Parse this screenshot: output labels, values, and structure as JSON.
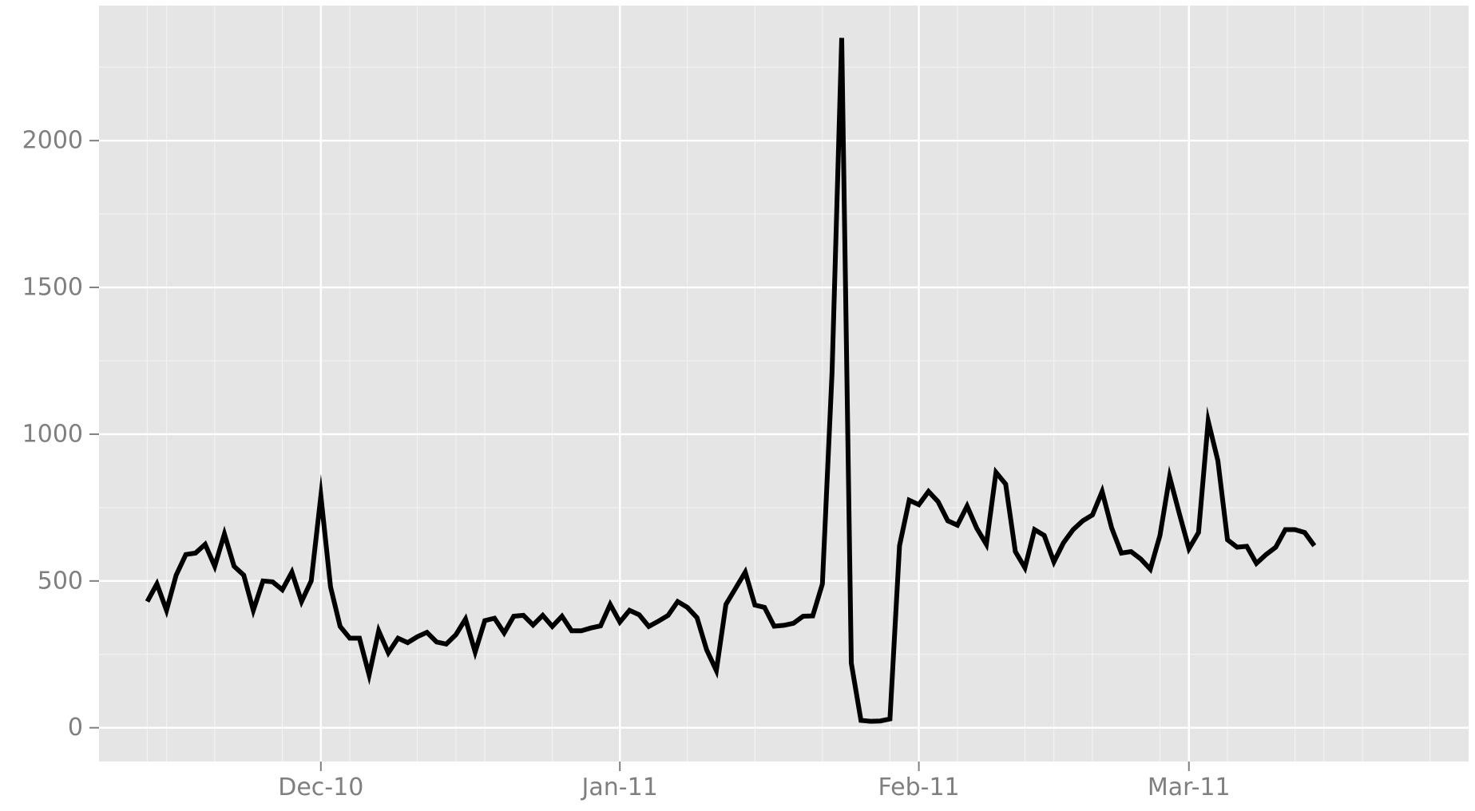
{
  "chart_data": {
    "type": "line",
    "title": "",
    "xlabel": "",
    "ylabel": "",
    "x_start": "2010-11-13",
    "x_end": "2011-03-18",
    "xlim": [
      "2010-11-08",
      "2011-03-30"
    ],
    "ylim": [
      -115,
      2460
    ],
    "grid": true,
    "legend": "none",
    "colors": {
      "panel": "#e5e5e5",
      "grid_major": "#ffffff",
      "grid_minor": "#f2f2f2",
      "line": "#000000",
      "tick_text": "#7f7f7f",
      "tick_mark": "#7f7f7f"
    },
    "x_ticks": [
      {
        "date": "2010-12-01",
        "label": "Dec-10"
      },
      {
        "date": "2011-01-01",
        "label": "Jan-11"
      },
      {
        "date": "2011-02-01",
        "label": "Feb-11"
      },
      {
        "date": "2011-03-01",
        "label": "Mar-11"
      }
    ],
    "x_minor_ticks": [
      "2010-11-15",
      "2010-12-15",
      "2011-01-15",
      "2011-02-15",
      "2011-03-15"
    ],
    "y_ticks": [
      {
        "value": 0,
        "label": "0"
      },
      {
        "value": 500,
        "label": "500"
      },
      {
        "value": 1000,
        "label": "1000"
      },
      {
        "value": 1500,
        "label": "1500"
      },
      {
        "value": 2000,
        "label": "2000"
      }
    ],
    "y_minor_ticks": [
      250,
      750,
      1250,
      1750,
      2250
    ],
    "series": [
      {
        "values": [
          430,
          490,
          400,
          520,
          590,
          595,
          625,
          550,
          660,
          550,
          520,
          400,
          500,
          497,
          470,
          530,
          430,
          500,
          790,
          480,
          345,
          305,
          305,
          180,
          330,
          255,
          305,
          290,
          310,
          325,
          292,
          285,
          317,
          370,
          258,
          365,
          373,
          323,
          380,
          383,
          350,
          383,
          345,
          380,
          330,
          330,
          340,
          347,
          420,
          360,
          400,
          385,
          345,
          363,
          383,
          430,
          410,
          375,
          265,
          195,
          420,
          475,
          530,
          418,
          410,
          346,
          349,
          356,
          380,
          381,
          490,
          1210,
          2350,
          220,
          25,
          22,
          23,
          30,
          620,
          775,
          760,
          805,
          770,
          705,
          690,
          755,
          680,
          625,
          870,
          830,
          600,
          545,
          675,
          655,
          565,
          630,
          675,
          705,
          725,
          805,
          680,
          595,
          600,
          575,
          540,
          655,
          855,
          730,
          610,
          665,
          1045,
          910,
          640,
          615,
          618,
          560,
          590,
          615,
          675,
          675,
          665,
          620
        ]
      }
    ]
  }
}
